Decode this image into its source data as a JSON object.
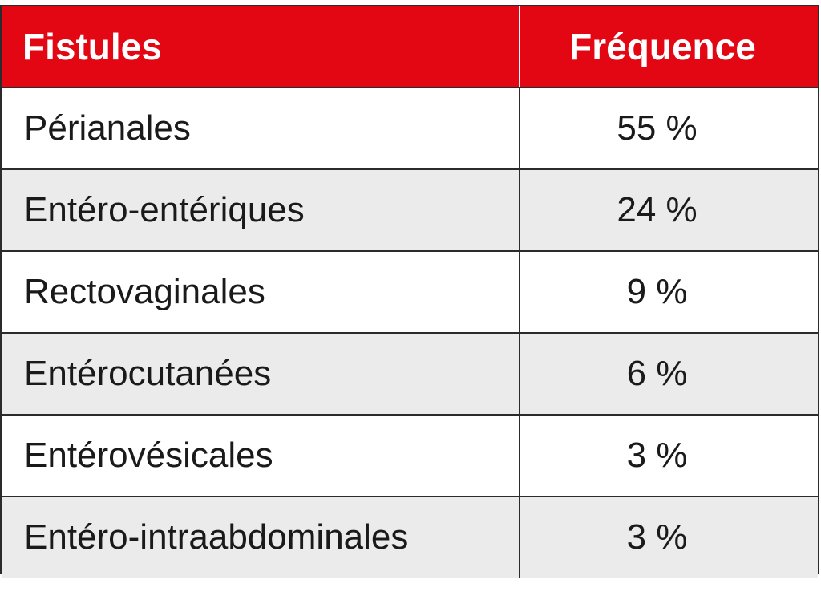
{
  "header": {
    "col1": "Fistules",
    "col2": "Fréquence"
  },
  "rows": [
    {
      "name": "Périanales",
      "freq": "55 %"
    },
    {
      "name": "Entéro-entériques",
      "freq": "24 %"
    },
    {
      "name": "Rectovaginales",
      "freq": "9 %"
    },
    {
      "name": "Entérocutanées",
      "freq": "6 %"
    },
    {
      "name": "Entérovésicales",
      "freq": "3 %"
    },
    {
      "name": "Entéro-intraabdominales",
      "freq": "3 %"
    }
  ],
  "colors": {
    "header_bg": "#e30613",
    "header_text": "#ffffff",
    "alt_row_bg": "#ebebeb",
    "border": "#2b2b2b"
  }
}
